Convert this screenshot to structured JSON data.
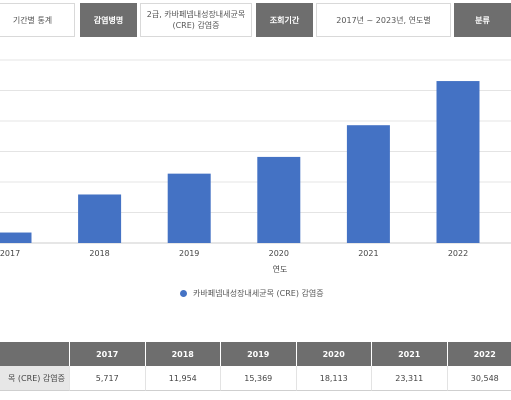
{
  "filters": {
    "stat_type": "기간별 통계",
    "disease_label": "감염병명",
    "disease_value_line1": "2급, 카바페넴내성장내세균목",
    "disease_value_line2": "(CRE) 감염증",
    "period_label": "조회기간",
    "period_value": "2017년 ~ 2023년, 연도별",
    "category_label": "분류"
  },
  "chart_data": {
    "type": "bar",
    "categories": [
      "2017",
      "2018",
      "2019",
      "2020",
      "2021",
      "2022"
    ],
    "series": [
      {
        "name": "카바페넴내성장내세균목 (CRE) 감염증",
        "values": [
          5717,
          11954,
          15369,
          18113,
          23311,
          30548
        ],
        "color": "#4472c4"
      }
    ],
    "xlabel": "연도",
    "ylabel": "",
    "ylim": [
      4000,
      34000
    ],
    "grid": true,
    "legend_position": "bottom"
  },
  "table": {
    "corner": "",
    "row_label": "목 (CRE) 감염증",
    "years": [
      "2017",
      "2018",
      "2019",
      "2020",
      "2021",
      "2022"
    ],
    "values": [
      "5,717",
      "11,954",
      "15,369",
      "18,113",
      "23,311",
      "30,548"
    ]
  }
}
